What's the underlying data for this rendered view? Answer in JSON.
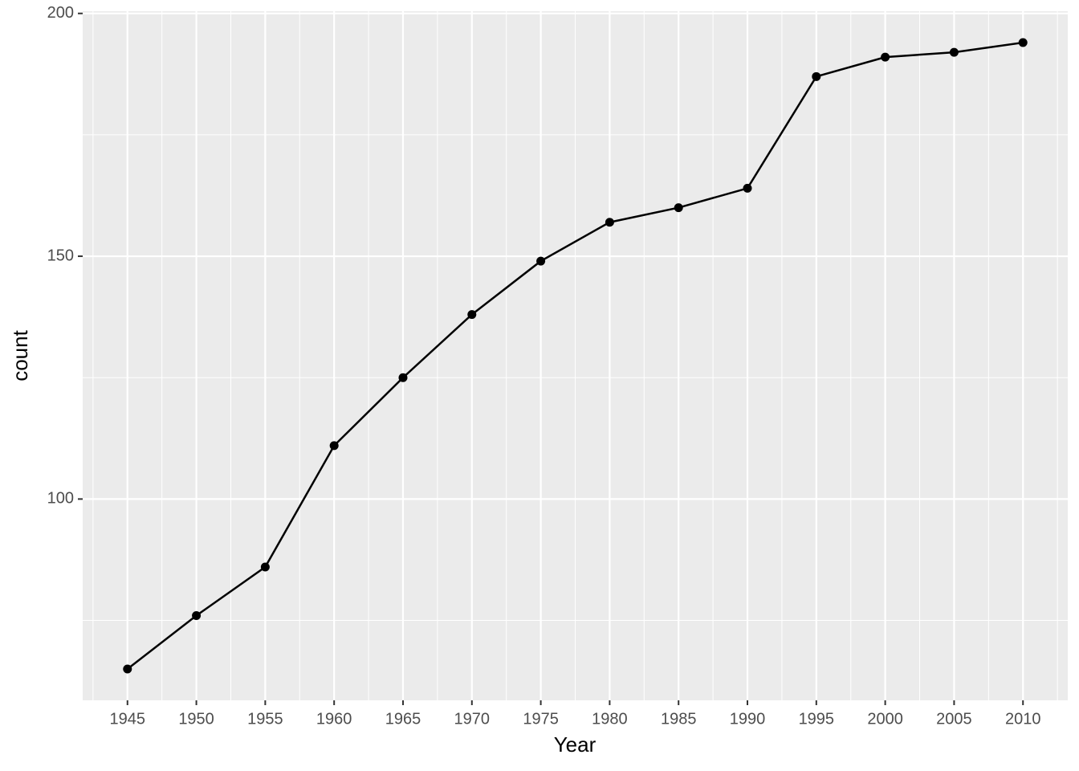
{
  "chart_data": {
    "type": "line",
    "x": [
      1945,
      1950,
      1955,
      1960,
      1965,
      1970,
      1975,
      1980,
      1985,
      1990,
      1995,
      2000,
      2005,
      2010
    ],
    "values": [
      65,
      76,
      86,
      111,
      125,
      138,
      149,
      157,
      160,
      164,
      187,
      191,
      192,
      194
    ],
    "color": "#000000",
    "x_label": "Year",
    "y_label": "count",
    "xlim": [
      1941.75,
      2013.25
    ],
    "xticks": [
      1945,
      1950,
      1955,
      1960,
      1965,
      1970,
      1975,
      1980,
      1985,
      1990,
      1995,
      2000,
      2005,
      2010
    ],
    "ylim": [
      58.55,
      200.45
    ],
    "yticks": [
      100,
      150,
      200
    ],
    "grid": true
  }
}
